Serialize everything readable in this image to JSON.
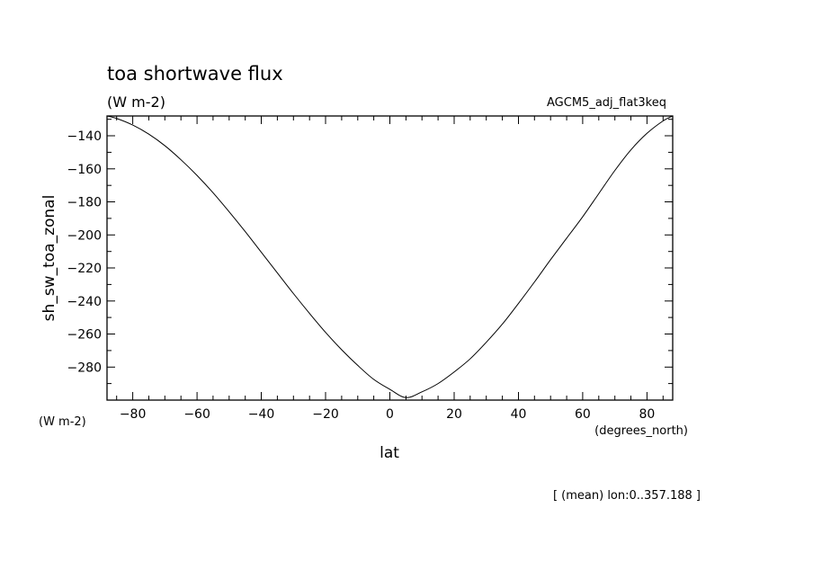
{
  "chart_data": {
    "type": "line",
    "title": "toa shortwave flux",
    "units_label": "(W m-2)",
    "experiment": "AGCM5_adj_flat3keq",
    "ylabel": "sh_sw_toa_zonal",
    "ylabel_units": "(W m-2)",
    "xlabel": "lat",
    "xlabel_units": "(degrees_north)",
    "footer": "[ (mean) lon:0..357.188 ]",
    "xlim": [
      -88,
      88
    ],
    "ylim": [
      -300,
      -128
    ],
    "x_ticks": [
      -80,
      -60,
      -40,
      -20,
      0,
      20,
      40,
      60,
      80
    ],
    "x_tick_labels": [
      "−80",
      "−60",
      "−40",
      "−20",
      "0",
      "20",
      "40",
      "60",
      "80"
    ],
    "y_ticks": [
      -140,
      -160,
      -180,
      -200,
      -220,
      -240,
      -260,
      -280
    ],
    "y_tick_labels": [
      "−140",
      "−160",
      "−180",
      "−200",
      "−220",
      "−240",
      "−260",
      "−280"
    ],
    "grid": false,
    "series": [
      {
        "x": [
          -88,
          -85,
          -80,
          -75,
          -70,
          -65,
          -60,
          -55,
          -50,
          -45,
          -40,
          -35,
          -30,
          -25,
          -20,
          -15,
          -10,
          -5,
          0,
          5,
          10,
          15,
          20,
          25,
          30,
          35,
          40,
          45,
          50,
          55,
          60,
          65,
          70,
          75,
          80,
          85,
          88
        ],
        "values": [
          -128,
          -129.5,
          -133.5,
          -139,
          -146,
          -154.5,
          -164,
          -174.5,
          -186,
          -198,
          -210.5,
          -223,
          -235.5,
          -247.5,
          -259,
          -269.5,
          -279,
          -287.5,
          -293.5,
          -298.5,
          -295,
          -290,
          -283,
          -275,
          -265,
          -254,
          -241.5,
          -228.5,
          -215,
          -202,
          -189,
          -175,
          -161,
          -148.5,
          -138.5,
          -131,
          -128
        ]
      }
    ]
  }
}
